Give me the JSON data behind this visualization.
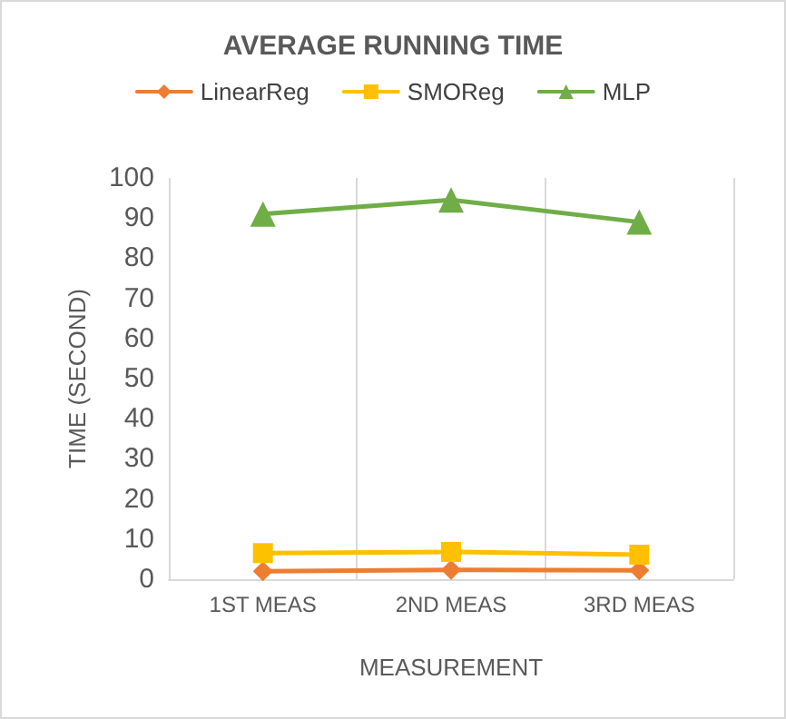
{
  "chart_data": {
    "type": "line",
    "title": "AVERAGE RUNNING TIME",
    "xlabel": "MEASUREMENT",
    "ylabel": "TIME (SECOND)",
    "categories": [
      "1ST MEAS",
      "2ND MEAS",
      "3RD MEAS"
    ],
    "series": [
      {
        "name": "LinearReg",
        "color": "#ed7d31",
        "marker": "diamond",
        "values": [
          2,
          2.3,
          2.2
        ]
      },
      {
        "name": "SMOReg",
        "color": "#ffc000",
        "marker": "square",
        "values": [
          6.5,
          6.8,
          6.1
        ]
      },
      {
        "name": "MLP",
        "color": "#70ad47",
        "marker": "triangle",
        "values": [
          91,
          94.5,
          89
        ]
      }
    ],
    "ylim": [
      0,
      100
    ],
    "yticks": [
      0,
      10,
      20,
      30,
      40,
      50,
      60,
      70,
      80,
      90,
      100
    ],
    "grid": "x",
    "legend": "top"
  }
}
